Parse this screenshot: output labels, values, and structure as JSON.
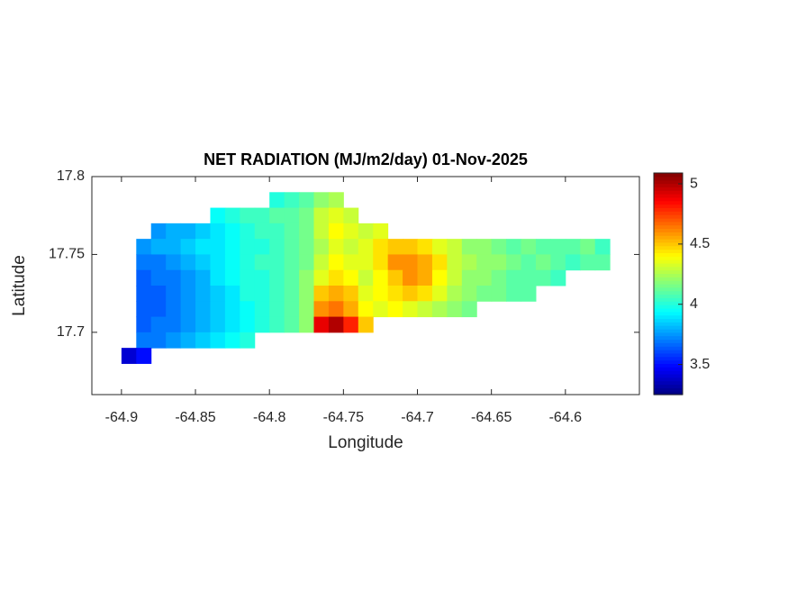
{
  "chart_data": {
    "type": "heatmap",
    "title": "NET RADIATION (MJ/m2/day) 01-Nov-2025",
    "x_label": "Longitude",
    "y_label": "Latitude",
    "xlim": [
      -64.92,
      -64.55
    ],
    "ylim": [
      17.66,
      17.8
    ],
    "xticks": [
      -64.9,
      -64.85,
      -64.8,
      -64.75,
      -64.7,
      -64.65,
      -64.6
    ],
    "yticks": [
      17.7,
      17.75,
      17.8
    ],
    "colormap": "jet",
    "clim": [
      3.25,
      5.09
    ],
    "cticks": [
      3.5,
      4,
      4.5,
      5
    ],
    "x": [
      -64.895,
      -64.885,
      -64.875,
      -64.865,
      -64.855,
      -64.845,
      -64.835,
      -64.825,
      -64.815,
      -64.805,
      -64.795,
      -64.785,
      -64.775,
      -64.765,
      -64.755,
      -64.745,
      -64.735,
      -64.725,
      -64.715,
      -64.705,
      -64.695,
      -64.685,
      -64.675,
      -64.665,
      -64.655,
      -64.645,
      -64.635,
      -64.625,
      -64.615,
      -64.605,
      -64.595,
      -64.585,
      -64.575,
      -64.565
    ],
    "y": [
      17.785,
      17.775,
      17.765,
      17.755,
      17.745,
      17.735,
      17.725,
      17.715,
      17.705,
      17.695,
      17.685
    ],
    "z": [
      [
        null,
        null,
        null,
        null,
        null,
        null,
        null,
        null,
        null,
        null,
        4.0,
        4.05,
        4.1,
        4.2,
        4.25,
        null,
        null,
        null,
        null,
        null,
        null,
        null,
        null,
        null,
        null,
        null,
        null,
        null,
        null,
        null,
        null,
        null,
        null,
        null
      ],
      [
        null,
        null,
        null,
        null,
        null,
        null,
        3.95,
        4.0,
        4.05,
        4.05,
        4.1,
        4.1,
        4.15,
        4.3,
        4.35,
        4.3,
        null,
        null,
        null,
        null,
        null,
        null,
        null,
        null,
        null,
        null,
        null,
        null,
        null,
        null,
        null,
        null,
        null,
        null
      ],
      [
        null,
        null,
        3.75,
        3.8,
        3.8,
        3.85,
        3.9,
        3.95,
        4.0,
        4.05,
        4.05,
        4.1,
        4.15,
        4.3,
        4.4,
        4.35,
        4.3,
        4.35,
        null,
        null,
        null,
        null,
        null,
        null,
        null,
        null,
        null,
        null,
        null,
        null,
        null,
        null,
        null,
        null
      ],
      [
        null,
        3.75,
        3.8,
        3.8,
        3.85,
        3.9,
        3.9,
        3.95,
        4.0,
        4.0,
        4.05,
        4.1,
        4.15,
        4.25,
        4.35,
        4.3,
        4.35,
        4.45,
        4.5,
        4.5,
        4.45,
        4.35,
        4.3,
        4.2,
        4.2,
        4.15,
        4.1,
        4.15,
        4.1,
        4.1,
        4.1,
        4.15,
        4.05,
        null
      ],
      [
        null,
        3.7,
        3.7,
        3.75,
        3.8,
        3.85,
        3.9,
        3.95,
        4.0,
        4.05,
        4.05,
        4.1,
        4.15,
        4.3,
        4.4,
        4.35,
        4.35,
        4.45,
        4.6,
        4.6,
        4.55,
        4.45,
        4.3,
        4.25,
        4.2,
        4.2,
        4.15,
        4.1,
        4.15,
        4.1,
        4.05,
        4.1,
        4.1,
        null
      ],
      [
        null,
        3.65,
        3.7,
        3.7,
        3.75,
        3.8,
        3.9,
        3.95,
        4.0,
        4.0,
        4.05,
        4.1,
        4.2,
        4.35,
        4.45,
        4.4,
        4.3,
        4.4,
        4.5,
        4.6,
        4.55,
        4.4,
        4.3,
        4.2,
        4.2,
        4.15,
        4.1,
        4.1,
        4.1,
        4.05,
        null,
        null,
        null,
        null
      ],
      [
        null,
        3.65,
        3.65,
        3.7,
        3.75,
        3.8,
        3.85,
        3.9,
        4.0,
        4.0,
        4.05,
        4.1,
        4.2,
        4.5,
        4.55,
        4.5,
        4.35,
        4.4,
        4.45,
        4.5,
        4.45,
        4.35,
        4.25,
        4.2,
        4.15,
        4.15,
        4.1,
        4.1,
        null,
        null,
        null,
        null,
        null,
        null
      ],
      [
        null,
        3.65,
        3.65,
        3.7,
        3.75,
        3.8,
        3.85,
        3.9,
        3.95,
        4.0,
        4.05,
        4.1,
        4.2,
        4.6,
        4.65,
        4.55,
        4.4,
        4.35,
        4.4,
        4.35,
        4.3,
        4.25,
        4.2,
        4.15,
        null,
        null,
        null,
        null,
        null,
        null,
        null,
        null,
        null,
        null
      ],
      [
        null,
        3.65,
        3.7,
        3.7,
        3.75,
        3.8,
        3.85,
        3.9,
        3.95,
        4.0,
        4.05,
        4.1,
        4.2,
        4.9,
        5.0,
        4.8,
        4.5,
        null,
        null,
        null,
        null,
        null,
        null,
        null,
        null,
        null,
        null,
        null,
        null,
        null,
        null,
        null,
        null,
        null
      ],
      [
        null,
        3.7,
        3.7,
        3.75,
        3.8,
        3.85,
        3.9,
        3.95,
        4.0,
        null,
        null,
        null,
        null,
        null,
        null,
        null,
        null,
        null,
        null,
        null,
        null,
        null,
        null,
        null,
        null,
        null,
        null,
        null,
        null,
        null,
        null,
        null,
        null,
        null
      ],
      [
        3.4,
        3.5,
        null,
        null,
        null,
        null,
        null,
        null,
        null,
        null,
        null,
        null,
        null,
        null,
        null,
        null,
        null,
        null,
        null,
        null,
        null,
        null,
        null,
        null,
        null,
        null,
        null,
        null,
        null,
        null,
        null,
        null,
        null,
        null
      ]
    ]
  }
}
